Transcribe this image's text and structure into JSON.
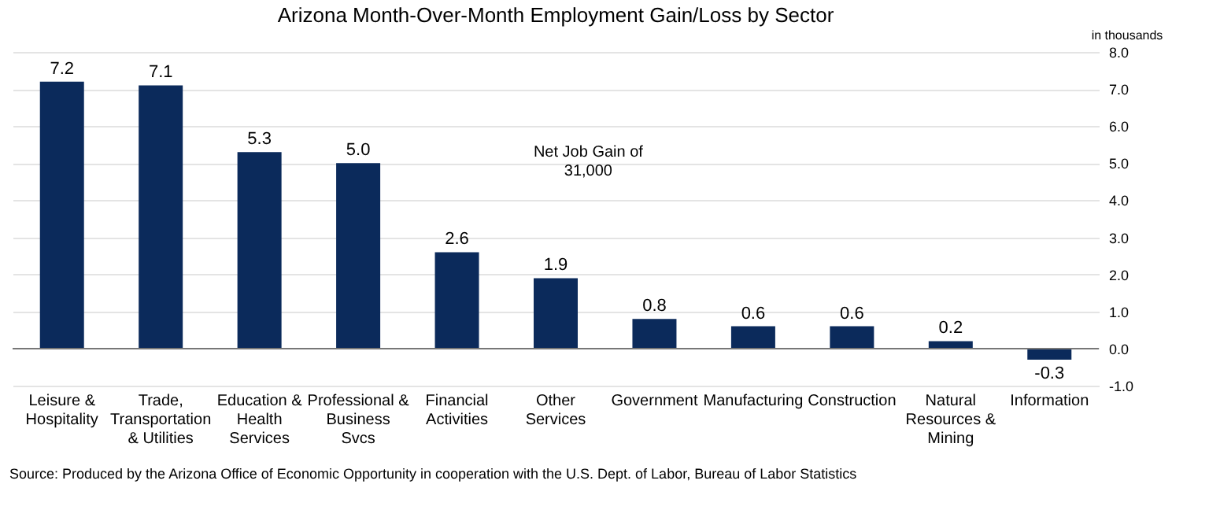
{
  "chart_data": {
    "type": "bar",
    "title": "Arizona Month-Over-Month  Employment Gain/Loss by Sector",
    "categories": [
      "Leisure &\nHospitality",
      "Trade,\nTransportation\n& Utilities",
      "Education &\nHealth\nServices",
      "Professional &\nBusiness\nSvcs",
      "Financial\nActivities",
      "Other\nServices",
      "Government",
      "Manufacturing",
      "Construction",
      "Natural\nResources &\nMining",
      "Information"
    ],
    "values": [
      7.2,
      7.1,
      5.3,
      5.0,
      2.6,
      1.9,
      0.8,
      0.6,
      0.6,
      0.2,
      -0.3
    ],
    "value_labels": [
      "7.2",
      "7.1",
      "5.3",
      "5.0",
      "2.6",
      "1.9",
      "0.8",
      "0.6",
      "0.6",
      "0.2",
      "-0.3"
    ],
    "color": "#0b2a5b",
    "ylim": [
      -1,
      8
    ],
    "yticks": [
      {
        "value": -1,
        "label": "-1.0"
      },
      {
        "value": 0,
        "label": "0.0"
      },
      {
        "value": 1,
        "label": "1.0"
      },
      {
        "value": 2,
        "label": "2.0"
      },
      {
        "value": 3,
        "label": "3.0"
      },
      {
        "value": 4,
        "label": "4.0"
      },
      {
        "value": 5,
        "label": "5.0"
      },
      {
        "value": 6,
        "label": "6.0"
      },
      {
        "value": 7,
        "label": "7.0"
      },
      {
        "value": 8,
        "label": "8.0"
      }
    ],
    "grid": "y",
    "annotations": [
      "in thousands",
      "Net Job Gain of\n31,000",
      "Source: Produced by the Arizona Office of Economic Opportunity in cooperation with the U.S. Dept. of Labor, Bureau of Labor Statistics"
    ]
  }
}
